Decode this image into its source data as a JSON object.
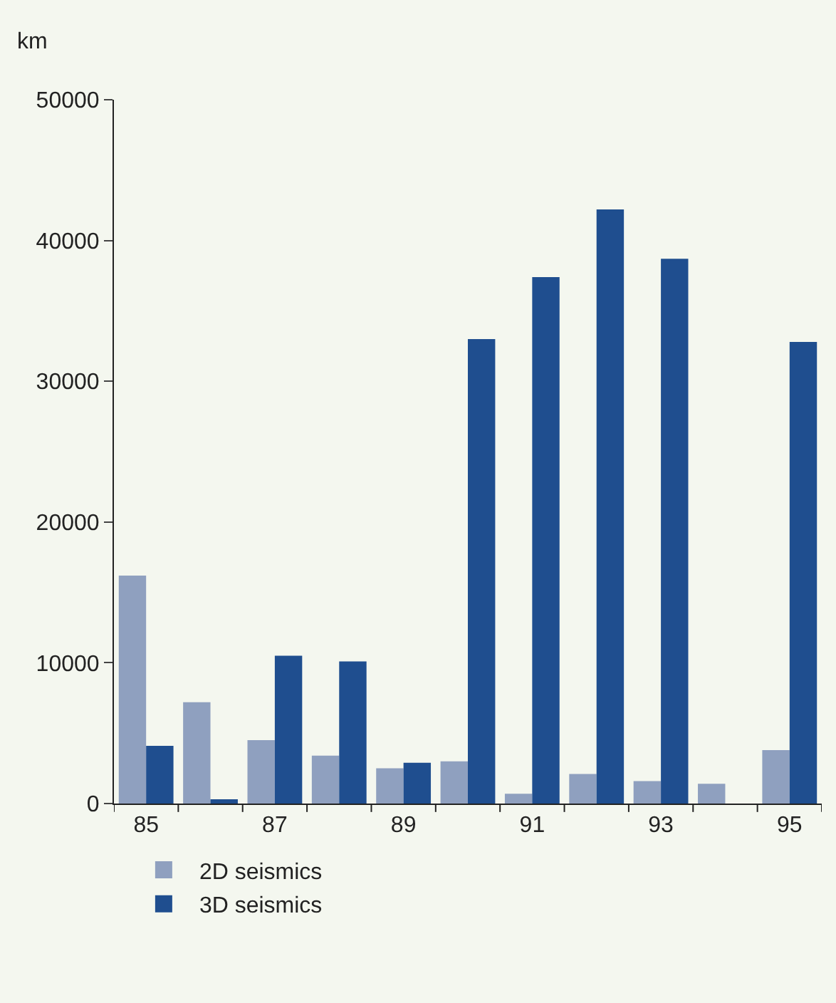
{
  "chart_data": {
    "type": "bar",
    "ylabel": "km",
    "categories": [
      "85",
      null,
      "87",
      null,
      "89",
      null,
      "91",
      null,
      "93",
      null,
      "95"
    ],
    "series": [
      {
        "name": "2D seismics",
        "color": "#8fa0bf",
        "values": [
          16200,
          7200,
          4500,
          3400,
          2500,
          3000,
          700,
          2100,
          1600,
          1400,
          3800
        ]
      },
      {
        "name": "3D seismics",
        "color": "#1f4e8f",
        "values": [
          4100,
          300,
          10500,
          10100,
          2900,
          33000,
          37400,
          42200,
          38700,
          null,
          32800
        ]
      }
    ],
    "ylim": [
      0,
      50000
    ],
    "yticks": [
      0,
      10000,
      20000,
      30000,
      40000,
      50000
    ],
    "grid": false,
    "legend": "bottom"
  }
}
